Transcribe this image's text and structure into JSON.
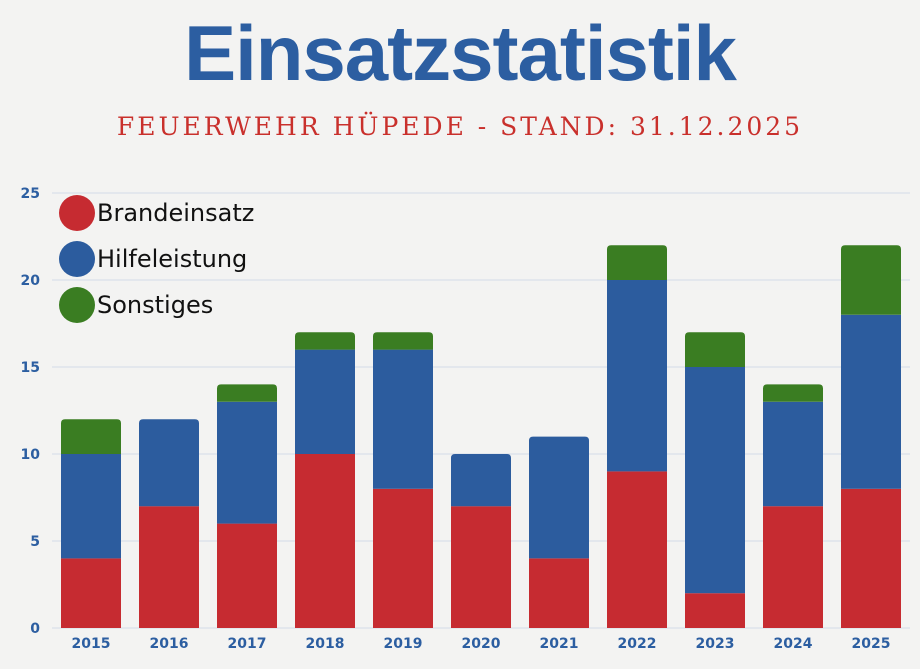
{
  "chart_data": {
    "type": "bar",
    "stacked": true,
    "title": "Einsatzstatistik",
    "subtitle": "FEUERWEHR HÜPEDE - STAND: 31.12.2025",
    "xlabel": "",
    "ylabel": "",
    "ylim": [
      0,
      25
    ],
    "yticks": [
      0,
      5,
      10,
      15,
      20,
      25
    ],
    "grid": true,
    "legend_position": "top-left",
    "categories": [
      "2015",
      "2016",
      "2017",
      "2018",
      "2019",
      "2020",
      "2021",
      "2022",
      "2023",
      "2024",
      "2025"
    ],
    "series": [
      {
        "name": "Brandeinsatz",
        "color": "#c62b31",
        "values": [
          4,
          7,
          6,
          10,
          8,
          7,
          4,
          9,
          2,
          7,
          8
        ]
      },
      {
        "name": "Hilfeleistung",
        "color": "#2c5c9e",
        "values": [
          6,
          5,
          7,
          6,
          8,
          3,
          7,
          11,
          13,
          6,
          10
        ]
      },
      {
        "name": "Sonstiges",
        "color": "#3a7d22",
        "values": [
          2,
          0,
          1,
          1,
          1,
          0,
          0,
          2,
          2,
          1,
          4
        ]
      }
    ]
  }
}
